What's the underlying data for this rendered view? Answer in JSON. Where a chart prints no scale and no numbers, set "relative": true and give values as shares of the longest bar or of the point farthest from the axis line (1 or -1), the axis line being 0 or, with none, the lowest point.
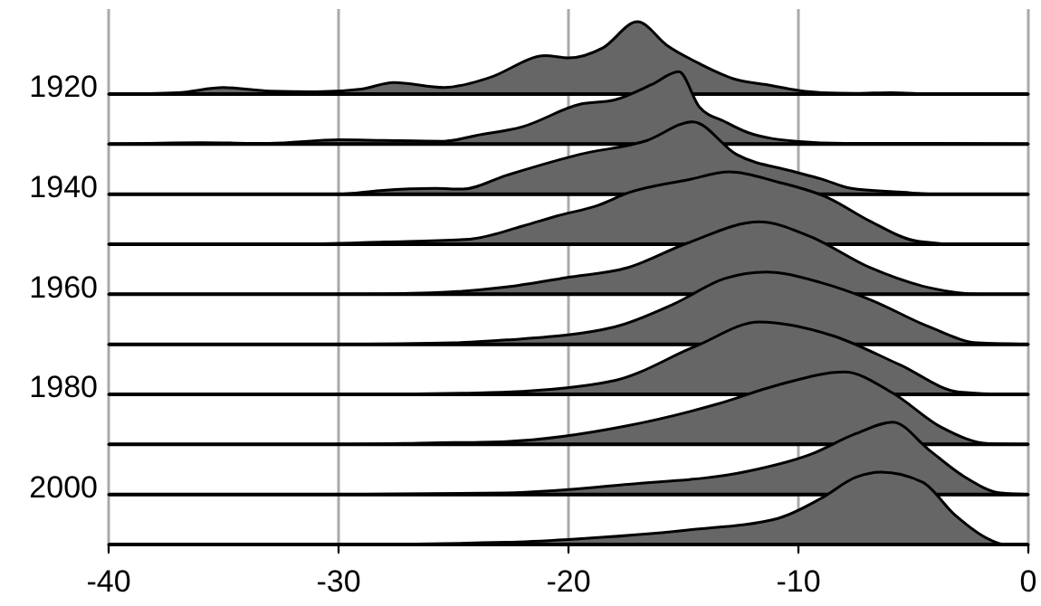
{
  "chart_data": [
    {
      "type": "area",
      "relative": true,
      "xlim": [
        -40,
        0
      ],
      "xticks": [
        -40,
        -30,
        -20,
        -10,
        0
      ],
      "grid": "x",
      "tick_labels": false,
      "x": [
        -40,
        -37,
        -35,
        -33,
        -31,
        -29,
        -27.6,
        -25.4,
        -23.5,
        -21,
        -20,
        -18.5,
        -17,
        -15.7,
        -14.3,
        -12.7,
        -11.4,
        -10,
        -9,
        -7.5,
        -6,
        -4,
        0
      ],
      "series": [
        {
          "name": "1920",
          "color": "#666666",
          "values": [
            0,
            0.02,
            0.09,
            0.04,
            0.03,
            0.07,
            0.16,
            0.09,
            0.22,
            0.53,
            0.5,
            0.64,
            1,
            0.67,
            0.42,
            0.2,
            0.13,
            0.05,
            0.02,
            0.01,
            0.02,
            0,
            0
          ]
        }
      ]
    },
    {
      "type": "area",
      "relative": true,
      "xlim": [
        -40,
        0
      ],
      "tick_labels": false,
      "x": [
        -40,
        -36,
        -33,
        -30,
        -28,
        -25.4,
        -24,
        -22,
        -19.5,
        -18,
        -16.4,
        -15.2,
        -14.3,
        -13.2,
        -12.2,
        -10.1,
        -8,
        -5,
        0
      ],
      "series": [
        {
          "color": "#666666",
          "values": [
            0,
            0.02,
            0.01,
            0.06,
            0.05,
            0.04,
            0.12,
            0.24,
            0.55,
            0.61,
            0.82,
            1,
            0.51,
            0.31,
            0.16,
            0.04,
            0.01,
            0.01,
            0
          ]
        }
      ]
    },
    {
      "type": "area",
      "relative": true,
      "xlim": [
        -40,
        0
      ],
      "tick_labels": false,
      "x": [
        -40,
        -30,
        -28.2,
        -25.8,
        -24.6,
        -22.7,
        -19.5,
        -16.6,
        -14.6,
        -12.7,
        -10.3,
        -9,
        -7.7,
        -5.6,
        -4,
        0
      ],
      "series": [
        {
          "name": "1940",
          "color": "#666666",
          "values": [
            0,
            0,
            0.05,
            0.08,
            0.07,
            0.26,
            0.55,
            0.74,
            1,
            0.55,
            0.32,
            0.21,
            0.08,
            0.03,
            0,
            0
          ]
        }
      ]
    },
    {
      "type": "area",
      "relative": true,
      "xlim": [
        -40,
        0
      ],
      "tick_labels": false,
      "x": [
        -40,
        -32,
        -28,
        -24.3,
        -22,
        -20.5,
        -18.7,
        -17.4,
        -14.8,
        -13,
        -10.9,
        -8.7,
        -6.9,
        -4.8,
        -3,
        0
      ],
      "series": [
        {
          "color": "#666666",
          "values": [
            0,
            0,
            0.03,
            0.07,
            0.25,
            0.39,
            0.54,
            0.71,
            0.89,
            1,
            0.86,
            0.64,
            0.32,
            0.04,
            0,
            0
          ]
        }
      ]
    },
    {
      "type": "area",
      "relative": true,
      "xlim": [
        -40,
        0
      ],
      "tick_labels": false,
      "x": [
        -40,
        -30,
        -26,
        -22.7,
        -20.1,
        -17.4,
        -14.8,
        -11.7,
        -9.5,
        -6.9,
        -4.3,
        -2,
        0
      ],
      "series": [
        {
          "name": "1960",
          "color": "#666666",
          "values": [
            0,
            0,
            0.02,
            0.1,
            0.23,
            0.37,
            0.71,
            1,
            0.8,
            0.37,
            0.09,
            0,
            0
          ]
        }
      ]
    },
    {
      "type": "area",
      "relative": true,
      "xlim": [
        -40,
        0
      ],
      "tick_labels": false,
      "x": [
        -40,
        -30,
        -25,
        -22.7,
        -18,
        -15.4,
        -13.2,
        -11.4,
        -9,
        -6.9,
        -4.3,
        -2.2,
        0
      ],
      "series": [
        {
          "color": "#666666",
          "values": [
            0,
            0,
            0.02,
            0.06,
            0.24,
            0.56,
            0.91,
            1,
            0.85,
            0.62,
            0.24,
            0.02,
            0
          ]
        }
      ]
    },
    {
      "type": "area",
      "relative": true,
      "xlim": [
        -40,
        0
      ],
      "tick_labels": false,
      "x": [
        -40,
        -30,
        -24,
        -22.7,
        -18,
        -14.5,
        -11.7,
        -8.5,
        -5.6,
        -3,
        -1,
        0
      ],
      "series": [
        {
          "name": "1980",
          "color": "#666666",
          "values": [
            0,
            0,
            0.02,
            0.03,
            0.19,
            0.66,
            1,
            0.81,
            0.41,
            0.03,
            0,
            0
          ]
        }
      ]
    },
    {
      "type": "area",
      "relative": true,
      "xlim": [
        -40,
        0
      ],
      "tick_labels": false,
      "x": [
        -40,
        -30,
        -26,
        -22.7,
        -17.4,
        -13.5,
        -10.9,
        -8,
        -5.9,
        -3.8,
        -1.7,
        0
      ],
      "series": [
        {
          "color": "#666666",
          "values": [
            0,
            0,
            0.02,
            0.04,
            0.26,
            0.56,
            0.82,
            1,
            0.71,
            0.24,
            0.01,
            0
          ]
        }
      ]
    },
    {
      "type": "area",
      "relative": true,
      "xlim": [
        -40,
        0
      ],
      "tick_labels": false,
      "x": [
        -40,
        -30,
        -22.7,
        -17.4,
        -12.2,
        -9.5,
        -7.5,
        -5.9,
        -4.3,
        -2.8,
        -1.2,
        0
      ],
      "series": [
        {
          "name": "2000",
          "color": "#666666",
          "values": [
            0,
            0,
            0.02,
            0.14,
            0.32,
            0.55,
            0.84,
            1,
            0.61,
            0.25,
            0.02,
            0
          ]
        }
      ]
    },
    {
      "type": "area",
      "relative": true,
      "xlim": [
        -40,
        0
      ],
      "xticks": [
        -40,
        -30,
        -20,
        -10,
        0
      ],
      "tick_labels": "x",
      "x": [
        -40,
        -30,
        -22.7,
        -20,
        -14.8,
        -10.9,
        -9,
        -7.5,
        -6.4,
        -4.6,
        -3.2,
        -1.7,
        -1,
        0
      ],
      "series": [
        {
          "color": "#666666",
          "values": [
            0,
            0,
            0.03,
            0.07,
            0.2,
            0.36,
            0.64,
            0.93,
            1,
            0.86,
            0.41,
            0.07,
            0,
            0
          ]
        }
      ]
    }
  ]
}
